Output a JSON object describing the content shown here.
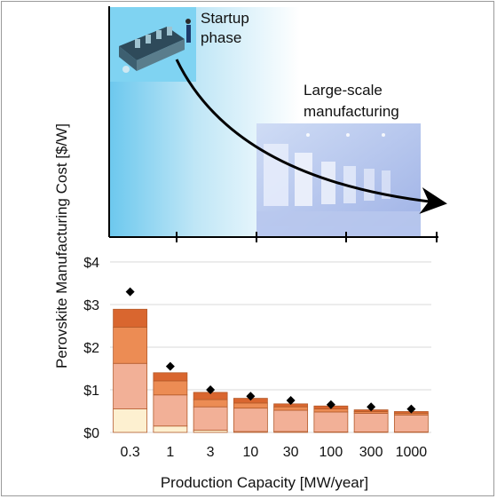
{
  "chart_data": {
    "type": "bar",
    "ylabel": "Perovskite Manufacturing Cost [$/W]",
    "xlabel": "Production Capacity [MW/year]",
    "ytick_labels": [
      "$0",
      "$1",
      "$2",
      "$3",
      "$4"
    ],
    "ylim": [
      0,
      4
    ],
    "grid": true,
    "categories": [
      "0.3",
      "1",
      "3",
      "10",
      "30",
      "100",
      "300",
      "1000"
    ],
    "series": [
      {
        "color": "#fdf0d0",
        "values": [
          0.55,
          0.15,
          0.05,
          0.02,
          0.02,
          0.01,
          0.01,
          0.01
        ]
      },
      {
        "color": "#f2b097",
        "values": [
          1.07,
          0.73,
          0.55,
          0.55,
          0.5,
          0.47,
          0.44,
          0.4
        ]
      },
      {
        "color": "#ec8c54",
        "values": [
          0.85,
          0.33,
          0.17,
          0.12,
          0.08,
          0.07,
          0.04,
          0.04
        ]
      },
      {
        "color": "#d9662f",
        "values": [
          0.42,
          0.19,
          0.17,
          0.11,
          0.07,
          0.07,
          0.04,
          0.04
        ]
      }
    ],
    "marker_values": [
      3.3,
      1.55,
      1.0,
      0.85,
      0.75,
      0.65,
      0.6,
      0.55
    ],
    "marker_shape": "diamond"
  },
  "illustration": {
    "startup_label": "Startup\nphase",
    "large_scale_label": "Large-scale\nmanufacturing",
    "trend": "decreasing arrow"
  }
}
